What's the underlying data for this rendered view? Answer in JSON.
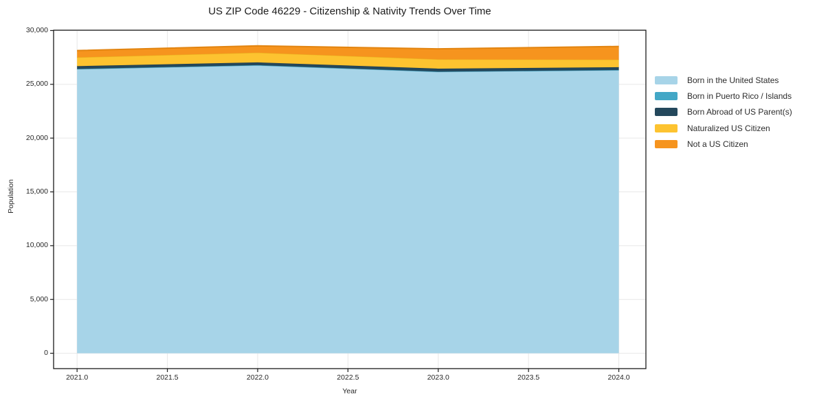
{
  "chart_data": {
    "type": "area",
    "stacked": true,
    "title": "US ZIP Code 46229 - Citizenship & Nativity Trends Over Time",
    "xlabel": "Year",
    "ylabel": "Population",
    "x": [
      2021,
      2022,
      2023,
      2024
    ],
    "series": [
      {
        "name": "Born in the United States",
        "color": "#a7d4e8",
        "edge": "#8fc3dc",
        "values": [
          26400,
          26750,
          26150,
          26300
        ]
      },
      {
        "name": "Born in Puerto Rico / Islands",
        "color": "#43a7c6",
        "edge": "#3795b2",
        "values": [
          30,
          30,
          30,
          30
        ]
      },
      {
        "name": "Born Abroad of US Parent(s)",
        "color": "#24485c",
        "edge": "#1c3a4b",
        "values": [
          260,
          260,
          280,
          260
        ]
      },
      {
        "name": "Naturalized US Citizen",
        "color": "#fdc330",
        "edge": "#eab31f",
        "values": [
          810,
          900,
          860,
          700
        ]
      },
      {
        "name": "Not a US Citizen",
        "color": "#f6941e",
        "edge": "#e28410",
        "values": [
          640,
          640,
          980,
          1230
        ]
      }
    ],
    "totals": [
      28140,
      28580,
      28300,
      28520
    ],
    "xlim": [
      2020.87,
      2024.15
    ],
    "ylim": [
      -1430,
      30030
    ],
    "x_ticks": [
      2021.0,
      2021.5,
      2022.0,
      2022.5,
      2023.0,
      2023.5,
      2024.0
    ],
    "x_tick_labels": [
      "2021.0",
      "2021.5",
      "2022.0",
      "2022.5",
      "2023.0",
      "2023.5",
      "2024.0"
    ],
    "y_ticks": [
      0,
      5000,
      10000,
      15000,
      20000,
      25000,
      30000
    ],
    "y_tick_labels": [
      "0",
      "5,000",
      "10,000",
      "15,000",
      "20,000",
      "25,000",
      "30,000"
    ],
    "grid": true,
    "legend_position": "right",
    "colors": {
      "background": "#ffffff",
      "grid": "#e7e7e7",
      "spine": "#1a1a1a",
      "text": "#262626"
    }
  }
}
